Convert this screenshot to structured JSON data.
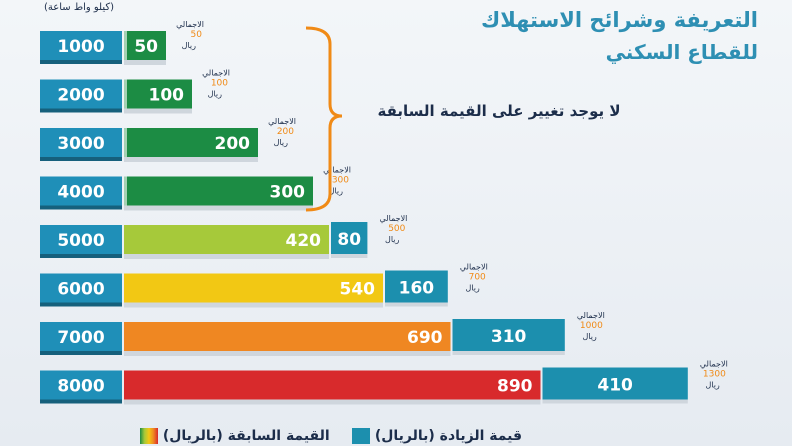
{
  "unit_label": "(كيلو واط ساعة)",
  "title_line1": "التعريفة وشرائح الاستهلاك",
  "title_line2": "للقطاع السكني",
  "note": "لا يوجد تغيير على القيمة السابقة",
  "total_label": "الاجمالي",
  "currency_label": "ريال",
  "legend": {
    "increase": "قيمة الزيادة (بالريال)",
    "previous": "القيمة السابقة (بالريال)"
  },
  "colors": {
    "tier_box": "#1f8fb8",
    "increase": "#1c8fae",
    "total_value": "#f08a16",
    "text_dark": "#1c2d4a",
    "previous": [
      "#1c8c44",
      "#1c8c44",
      "#1c8c44",
      "#1c8c44",
      "#a6c93a",
      "#f2c814",
      "#ef8722",
      "#d82a2c"
    ]
  },
  "chart_data": {
    "type": "bar",
    "categories": [
      "1000",
      "2000",
      "3000",
      "4000",
      "5000",
      "6000",
      "7000",
      "8000"
    ],
    "series": [
      {
        "name": "القيمة السابقة (بالريال)",
        "values": [
          50,
          100,
          200,
          300,
          420,
          540,
          690,
          890
        ]
      },
      {
        "name": "قيمة الزيادة (بالريال)",
        "values": [
          0,
          0,
          0,
          0,
          80,
          160,
          310,
          410
        ]
      }
    ],
    "totals": [
      50,
      100,
      200,
      300,
      500,
      700,
      1000,
      1300
    ],
    "ylabel": "(كيلو واط ساعة)",
    "title": "التعريفة وشرائح الاستهلاك للقطاع السكني"
  }
}
